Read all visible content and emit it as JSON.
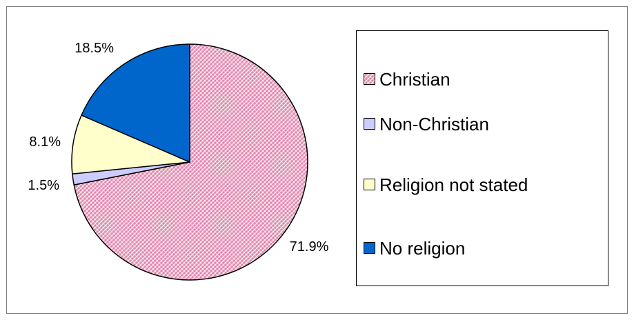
{
  "chart_data": {
    "type": "pie",
    "title": "",
    "slices": [
      {
        "label": "Christian",
        "value": 71.9,
        "display": "71.9%",
        "color": "#e890b8",
        "pattern": "crosshatch"
      },
      {
        "label": "Non-Christian",
        "value": 1.5,
        "display": "1.5%",
        "color": "#ccccff",
        "pattern": "none"
      },
      {
        "label": "Religion not stated",
        "value": 8.1,
        "display": "8.1%",
        "color": "#ffffcc",
        "pattern": "none"
      },
      {
        "label": "No religion",
        "value": 18.5,
        "display": "18.5%",
        "color": "#0066cc",
        "pattern": "none"
      }
    ],
    "start_angle": "12 o'clock",
    "direction": "clockwise",
    "legend_position": "right"
  }
}
